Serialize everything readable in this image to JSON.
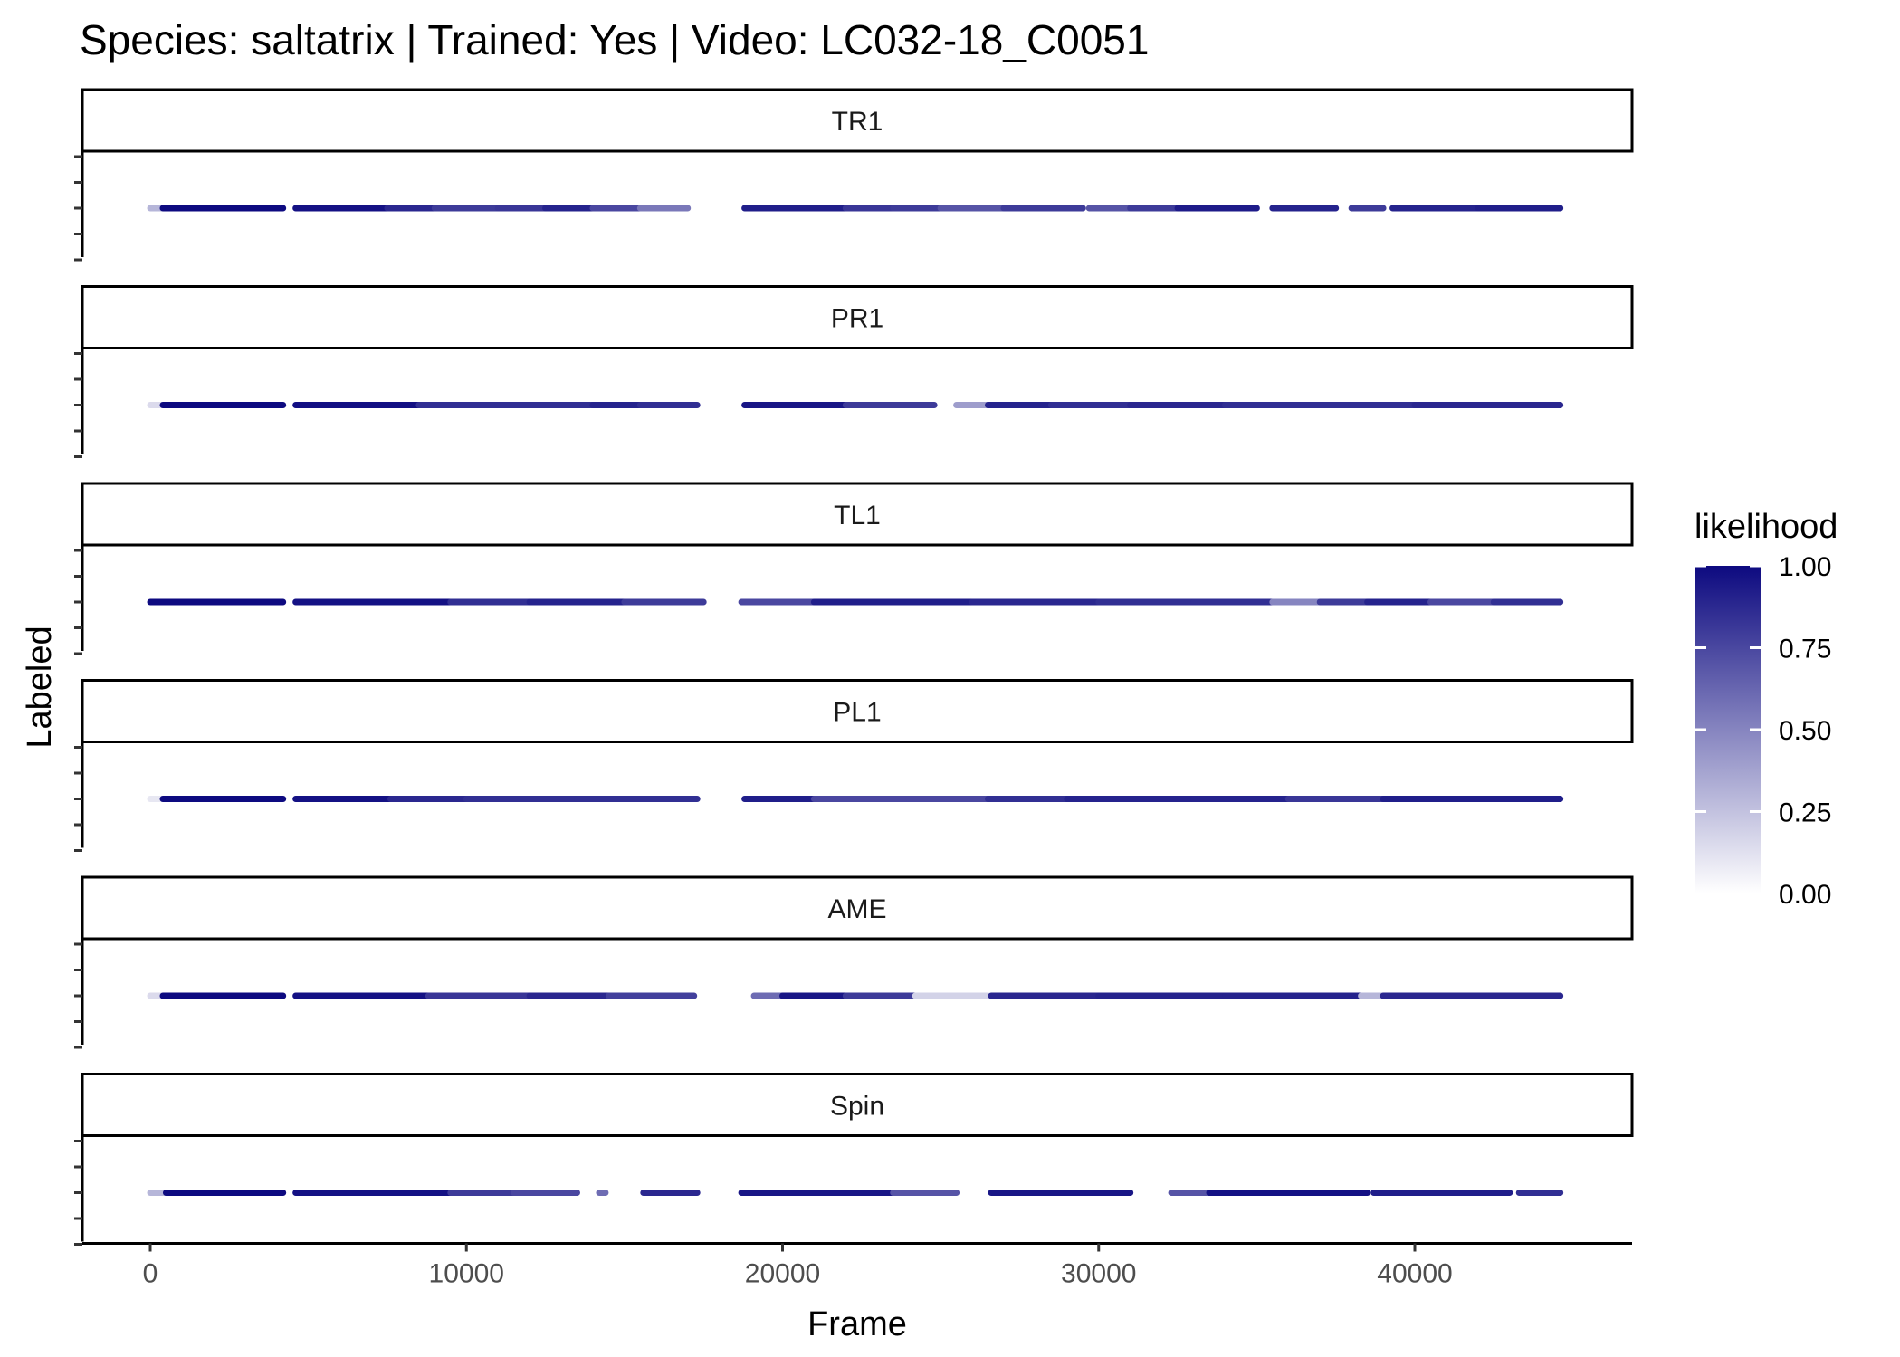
{
  "chart_data": {
    "type": "scatter",
    "title": "Species: saltatrix | Trained: Yes | Video: LC032-18_C0051",
    "xlabel": "Frame",
    "ylabel": "Labeled",
    "xlim": [
      -2200,
      46800
    ],
    "x_ticks": [
      0,
      10000,
      20000,
      30000,
      40000
    ],
    "x_tick_labels": [
      "0",
      "10000",
      "20000",
      "30000",
      "40000"
    ],
    "grid": false,
    "legend": {
      "title": "likelihood",
      "position": "right",
      "low_color": "#ffffff",
      "high_color": "#0d0a80",
      "ticks": [
        1.0,
        0.75,
        0.5,
        0.25,
        0.0
      ],
      "tick_labels": [
        "1.00",
        "0.75",
        "0.50",
        "0.25",
        "0.00"
      ]
    },
    "panels": [
      {
        "name": "TR1",
        "segments": [
          [
            0,
            400,
            0.3
          ],
          [
            400,
            4200,
            1.0
          ],
          [
            4600,
            7500,
            0.97
          ],
          [
            7500,
            9000,
            0.88
          ],
          [
            9000,
            11000,
            0.8
          ],
          [
            11000,
            12500,
            0.82
          ],
          [
            12500,
            14000,
            0.9
          ],
          [
            14000,
            15500,
            0.75
          ],
          [
            15500,
            17000,
            0.55
          ],
          [
            18800,
            22000,
            0.92
          ],
          [
            22000,
            23500,
            0.82
          ],
          [
            23500,
            25000,
            0.8
          ],
          [
            25000,
            27000,
            0.7
          ],
          [
            27000,
            29500,
            0.8
          ],
          [
            29700,
            31000,
            0.7
          ],
          [
            31000,
            32500,
            0.8
          ],
          [
            32500,
            35000,
            0.93
          ],
          [
            35500,
            37500,
            0.9
          ],
          [
            38000,
            39000,
            0.8
          ],
          [
            39300,
            42000,
            0.9
          ],
          [
            42000,
            44600,
            0.92
          ]
        ]
      },
      {
        "name": "PR1",
        "segments": [
          [
            0,
            400,
            0.15
          ],
          [
            400,
            4200,
            1.0
          ],
          [
            4600,
            8500,
            0.98
          ],
          [
            8500,
            11000,
            0.85
          ],
          [
            11000,
            14000,
            0.85
          ],
          [
            14000,
            15500,
            0.9
          ],
          [
            15500,
            17300,
            0.85
          ],
          [
            18800,
            22000,
            0.95
          ],
          [
            22000,
            24800,
            0.8
          ],
          [
            25500,
            26500,
            0.4
          ],
          [
            26500,
            28500,
            0.9
          ],
          [
            28500,
            31000,
            0.85
          ],
          [
            31000,
            34000,
            0.88
          ],
          [
            34000,
            38000,
            0.85
          ],
          [
            38000,
            40000,
            0.85
          ],
          [
            40000,
            44600,
            0.88
          ]
        ]
      },
      {
        "name": "TL1",
        "segments": [
          [
            0,
            4200,
            1.0
          ],
          [
            4600,
            9500,
            0.97
          ],
          [
            9500,
            12000,
            0.85
          ],
          [
            12000,
            15000,
            0.9
          ],
          [
            15000,
            17500,
            0.8
          ],
          [
            18700,
            21000,
            0.75
          ],
          [
            21000,
            26000,
            0.92
          ],
          [
            26000,
            30000,
            0.88
          ],
          [
            30000,
            33000,
            0.85
          ],
          [
            33000,
            35500,
            0.85
          ],
          [
            35500,
            37000,
            0.5
          ],
          [
            37000,
            38500,
            0.8
          ],
          [
            38500,
            40500,
            0.9
          ],
          [
            40500,
            42500,
            0.75
          ],
          [
            42500,
            44600,
            0.85
          ]
        ]
      },
      {
        "name": "PL1",
        "segments": [
          [
            0,
            400,
            0.1
          ],
          [
            400,
            4200,
            1.0
          ],
          [
            4600,
            7600,
            0.97
          ],
          [
            7600,
            10000,
            0.88
          ],
          [
            10000,
            13500,
            0.85
          ],
          [
            13500,
            17300,
            0.85
          ],
          [
            18800,
            21000,
            0.92
          ],
          [
            21000,
            24000,
            0.75
          ],
          [
            24000,
            26500,
            0.75
          ],
          [
            26500,
            29000,
            0.85
          ],
          [
            29000,
            33000,
            0.9
          ],
          [
            33000,
            36000,
            0.9
          ],
          [
            36000,
            39000,
            0.82
          ],
          [
            39000,
            44600,
            0.92
          ]
        ]
      },
      {
        "name": "AME",
        "segments": [
          [
            0,
            400,
            0.15
          ],
          [
            400,
            4200,
            1.0
          ],
          [
            4600,
            8800,
            0.97
          ],
          [
            8800,
            12000,
            0.82
          ],
          [
            12000,
            14500,
            0.88
          ],
          [
            14500,
            17200,
            0.78
          ],
          [
            19100,
            20000,
            0.6
          ],
          [
            20000,
            22000,
            0.95
          ],
          [
            22000,
            24200,
            0.8
          ],
          [
            24200,
            26500,
            0.18
          ],
          [
            26600,
            30000,
            0.88
          ],
          [
            30000,
            34000,
            0.9
          ],
          [
            34000,
            38300,
            0.9
          ],
          [
            38300,
            39000,
            0.3
          ],
          [
            39000,
            44600,
            0.88
          ]
        ]
      },
      {
        "name": "Spin",
        "segments": [
          [
            0,
            500,
            0.3
          ],
          [
            500,
            4200,
            1.0
          ],
          [
            4600,
            9500,
            0.97
          ],
          [
            9500,
            11500,
            0.8
          ],
          [
            11500,
            13500,
            0.75
          ],
          [
            14200,
            14400,
            0.6
          ],
          [
            15600,
            17300,
            0.88
          ],
          [
            18700,
            23500,
            0.95
          ],
          [
            23500,
            25500,
            0.7
          ],
          [
            26600,
            31000,
            0.95
          ],
          [
            32300,
            33500,
            0.7
          ],
          [
            33500,
            38500,
            0.97
          ],
          [
            38700,
            43000,
            0.92
          ],
          [
            43300,
            44600,
            0.85
          ]
        ]
      }
    ]
  }
}
